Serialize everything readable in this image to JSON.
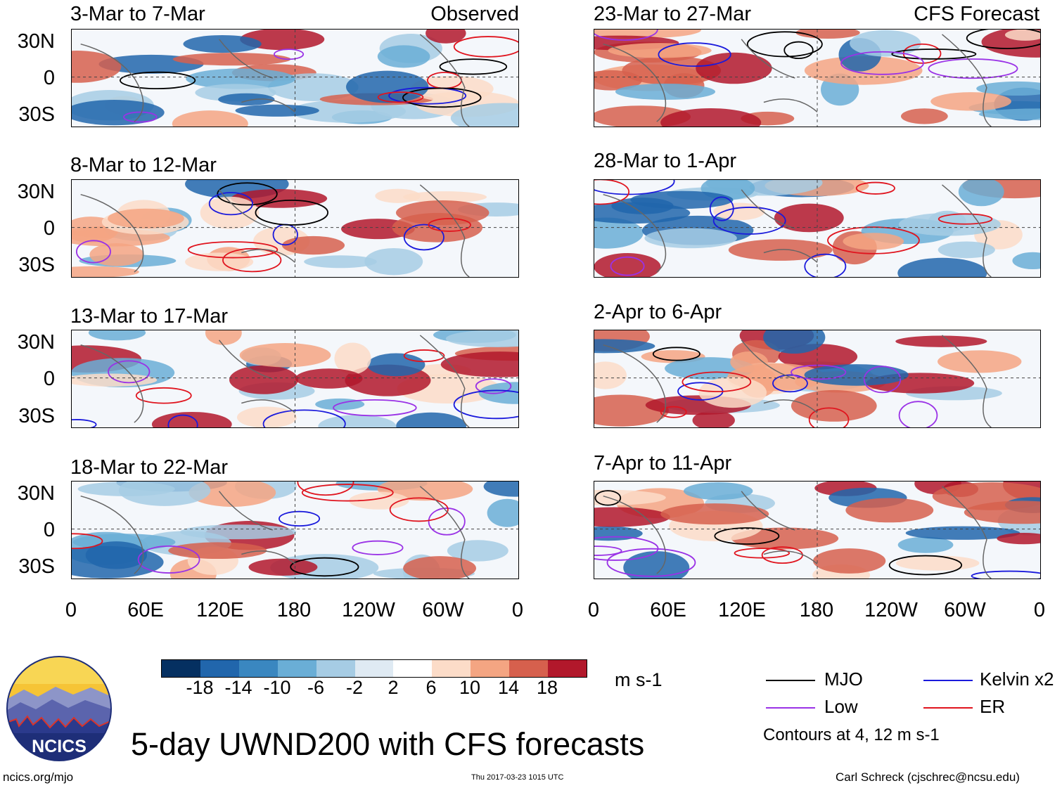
{
  "figure": {
    "main_title": "5-day UWND200 with CFS forecasts",
    "units": "m s-1",
    "contours_note": "Contours at 4, 12 m s-1",
    "site": "ncics.org/mjo",
    "timestamp": "Thu 2017-03-23 1015 UTC",
    "author": "Carl Schreck (cjschrec@ncsu.edu)",
    "logo_text": "NCICS"
  },
  "columns": [
    {
      "source_label": "Observed",
      "panels": [
        {
          "title": "3-Mar to 7-Mar"
        },
        {
          "title": "8-Mar to 12-Mar"
        },
        {
          "title": "13-Mar to 17-Mar"
        },
        {
          "title": "18-Mar to 22-Mar"
        }
      ]
    },
    {
      "source_label": "CFS Forecast",
      "panels": [
        {
          "title": "23-Mar to 27-Mar"
        },
        {
          "title": "28-Mar to 1-Apr"
        },
        {
          "title": "2-Apr to 6-Apr"
        },
        {
          "title": "7-Apr to 11-Apr"
        }
      ]
    }
  ],
  "axes": {
    "lat_labels": [
      "30N",
      "0",
      "30S"
    ],
    "lon_labels": [
      "0",
      "60E",
      "120E",
      "180",
      "120W",
      "60W",
      "0"
    ]
  },
  "colorbar": {
    "ticks": [
      "-18",
      "-14",
      "-10",
      "-6",
      "-2",
      "2",
      "6",
      "10",
      "14",
      "18"
    ],
    "colors": [
      "#053061",
      "#2166ac",
      "#3a87c0",
      "#6aaed6",
      "#a6cce4",
      "#dfeaf3",
      "#ffffff",
      "#fcdcc8",
      "#f4a582",
      "#d6604d",
      "#b2182b",
      "#67001f"
    ]
  },
  "legend": [
    {
      "label": "MJO",
      "color": "#000000"
    },
    {
      "label": "Kelvin x2",
      "color": "#1a1adc"
    },
    {
      "label": "Low",
      "color": "#9a32e6"
    },
    {
      "label": "ER",
      "color": "#e0141e"
    }
  ]
}
